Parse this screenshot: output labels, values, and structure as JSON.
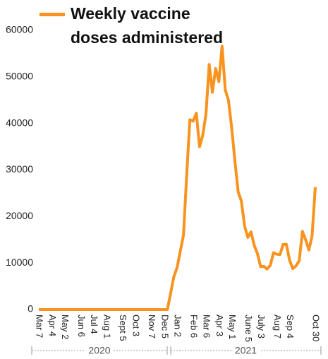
{
  "chart_data": {
    "type": "line",
    "categories": [
      "Mar 7",
      null,
      null,
      null,
      "Apr 4",
      null,
      null,
      null,
      "May 2",
      null,
      null,
      null,
      null,
      "Jun 6",
      null,
      null,
      null,
      "Jul 4",
      null,
      null,
      null,
      "Aug 1",
      null,
      null,
      null,
      null,
      "Sept 5",
      null,
      null,
      null,
      "Oct 3",
      null,
      null,
      null,
      null,
      "Nov 7",
      null,
      null,
      null,
      "Dec 5",
      null,
      null,
      null,
      "Jan 2",
      null,
      null,
      null,
      null,
      "Feb 6",
      null,
      null,
      null,
      "Mar 6",
      null,
      null,
      null,
      "Apr 3",
      null,
      null,
      null,
      "May 1",
      null,
      null,
      null,
      null,
      "June 5",
      null,
      null,
      null,
      "July 3",
      null,
      null,
      null,
      null,
      "Aug 7",
      null,
      null,
      null,
      "Sep 4",
      null,
      null,
      null,
      null,
      null,
      null,
      null,
      "Oct 30"
    ],
    "series": [
      {
        "name": "Weekly vaccine doses administered",
        "color": "#f7931e",
        "values": [
          0,
          0,
          0,
          0,
          0,
          0,
          0,
          0,
          0,
          0,
          0,
          0,
          0,
          0,
          0,
          0,
          0,
          0,
          0,
          0,
          0,
          0,
          0,
          0,
          0,
          0,
          0,
          0,
          0,
          0,
          0,
          0,
          0,
          0,
          0,
          0,
          0,
          0,
          0,
          0,
          0,
          3500,
          7000,
          9000,
          12500,
          16000,
          29000,
          40800,
          40500,
          42200,
          35000,
          37500,
          42000,
          52700,
          46700,
          51800,
          49000,
          56600,
          47200,
          45000,
          39000,
          32000,
          25300,
          23300,
          18000,
          15500,
          16700,
          13800,
          12000,
          9200,
          9300,
          8700,
          9500,
          12200,
          11900,
          11800,
          14000,
          14000,
          10600,
          8800,
          9400,
          10500,
          16800,
          15000,
          12800,
          15800,
          26300
        ]
      }
    ],
    "ylim": [
      0,
      60000
    ],
    "yticks": [
      0,
      10000,
      20000,
      30000,
      40000,
      50000,
      60000
    ],
    "year_labels": [
      "2020",
      "2021"
    ],
    "grid": false
  }
}
